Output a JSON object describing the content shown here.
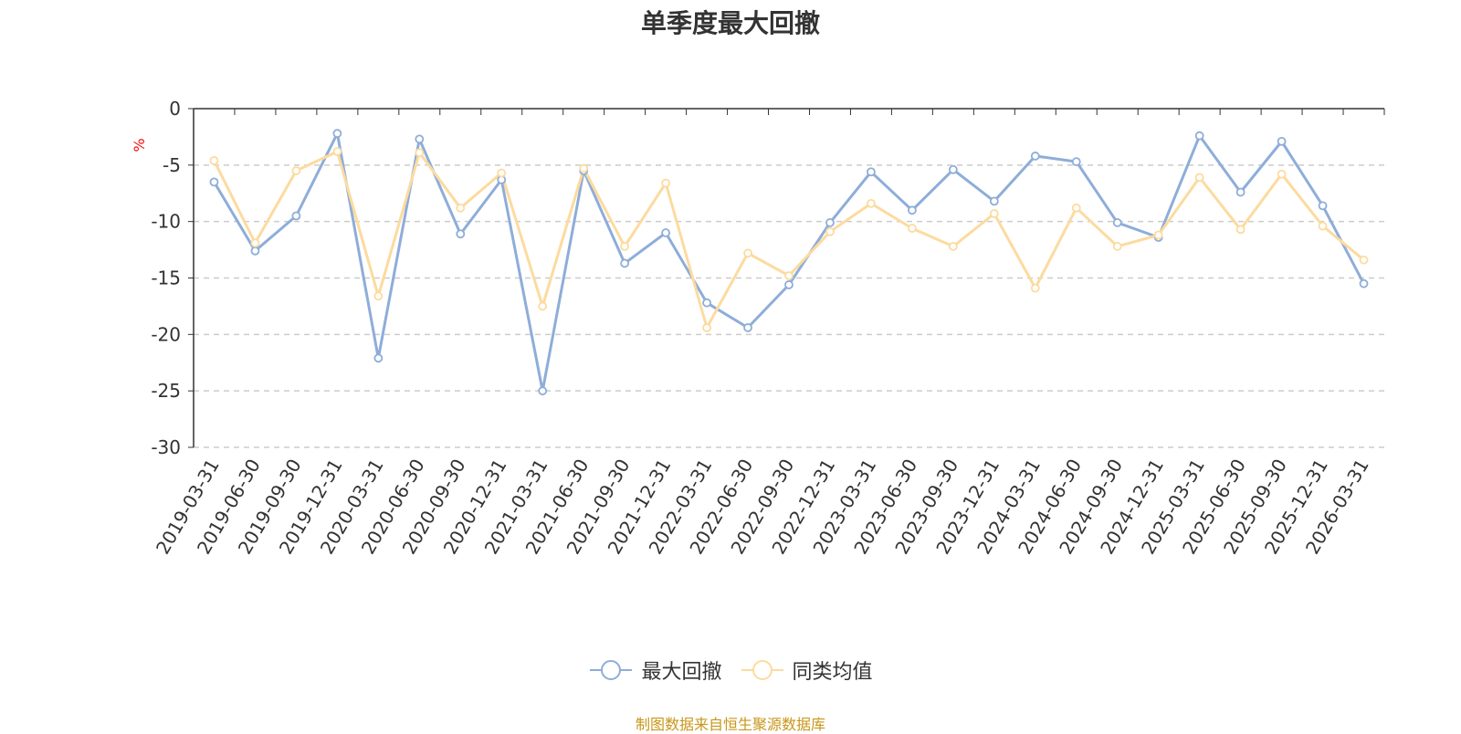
{
  "colors": {
    "series1": "#8eadd9",
    "series2": "#fcdb9f",
    "source_text": "#c8961a",
    "unit": "#ee1111"
  },
  "chart_data": {
    "type": "line",
    "title": "单季度最大回撤",
    "ylabel": "%",
    "ylim": [
      -30,
      0
    ],
    "yticks": [
      0,
      -5,
      -10,
      -15,
      -20,
      -25,
      -30
    ],
    "grid": true,
    "legend_position": "bottom",
    "categories": [
      "2019-03-31",
      "2019-06-30",
      "2019-09-30",
      "2019-12-31",
      "2020-03-31",
      "2020-06-30",
      "2020-09-30",
      "2020-12-31",
      "2021-03-31",
      "2021-06-30",
      "2021-09-30",
      "2021-12-31",
      "2022-03-31",
      "2022-06-30",
      "2022-09-30",
      "2022-12-31",
      "2023-03-31",
      "2023-06-30",
      "2023-09-30",
      "2023-12-31",
      "2024-03-31",
      "2024-06-30",
      "2024-09-30",
      "2024-12-31",
      "2025-03-31",
      "2025-06-30",
      "2025-09-30",
      "2025-12-31",
      "2026-03-31"
    ],
    "series": [
      {
        "name": "最大回撤",
        "values": [
          -6.5,
          -12.6,
          -9.5,
          -2.2,
          -22.1,
          -2.7,
          -11.1,
          -6.3,
          -25.0,
          -5.5,
          -13.7,
          -11.0,
          -17.2,
          -19.4,
          -15.6,
          -10.1,
          -5.6,
          -9.0,
          -5.4,
          -8.2,
          -4.2,
          -4.7,
          -10.1,
          -11.4,
          -2.4,
          -7.4,
          -2.9,
          -8.6,
          -15.5
        ]
      },
      {
        "name": "同类均值",
        "values": [
          -4.6,
          -11.9,
          -5.5,
          -3.8,
          -16.6,
          -3.9,
          -8.8,
          -5.7,
          -17.5,
          -5.3,
          -12.2,
          -6.6,
          -19.4,
          -12.8,
          -14.8,
          -10.9,
          -8.4,
          -10.6,
          -12.2,
          -9.3,
          -15.9,
          -8.8,
          -12.2,
          -11.2,
          -6.1,
          -10.7,
          -5.8,
          -10.4,
          -13.4
        ]
      }
    ]
  },
  "source_text": "制图数据来自恒生聚源数据库"
}
